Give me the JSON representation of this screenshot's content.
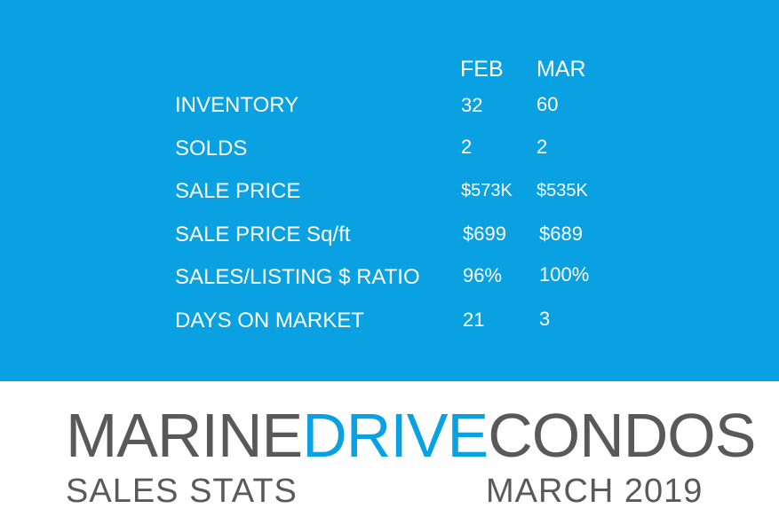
{
  "colors": {
    "accent": "#0aa1e2",
    "text_dark": "#595959",
    "text_light": "#ffffff"
  },
  "table": {
    "columns": [
      "FEB",
      "MAR"
    ],
    "rows": [
      {
        "label": "INVENTORY",
        "feb": "32",
        "mar": "60"
      },
      {
        "label": "SOLDS",
        "feb": "2",
        "mar": "2"
      },
      {
        "label": "SALE PRICE",
        "feb": "$573K",
        "mar": "$535K"
      },
      {
        "label": "SALE PRICE Sq/ft",
        "feb": "$699",
        "mar": "$689"
      },
      {
        "label": "SALES/LISTING $ RATIO",
        "feb": "96%",
        "mar": "100%"
      },
      {
        "label": "DAYS ON MARKET",
        "feb": "21",
        "mar": "3"
      }
    ]
  },
  "brand": {
    "part1": "MARINE",
    "part2": "DRIVE",
    "part3": "CONDOS"
  },
  "footer": {
    "left": "SALES STATS",
    "right": "MARCH 2019"
  }
}
